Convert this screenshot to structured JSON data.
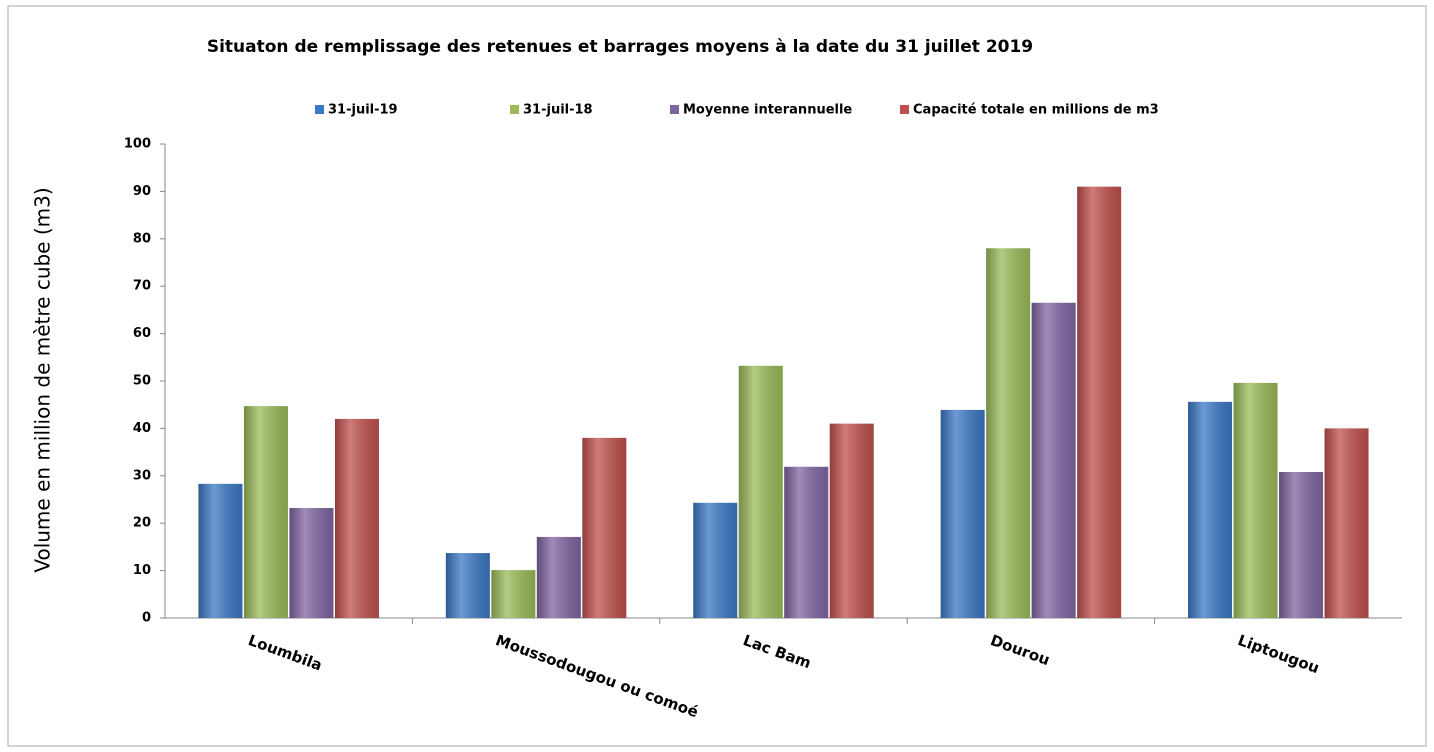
{
  "chart_data": {
    "type": "bar",
    "title": "Situaton de remplissage des retenues et barrages moyens à la date du 31 juillet 2019",
    "y_label": "Volume en million de mètre cube (m3)",
    "categories": [
      "Loumbila",
      "Moussodougou ou comoé",
      "Lac Bam",
      "Dourou",
      "Liptougou"
    ],
    "series": [
      {
        "name": "31-juil-19",
        "color": "#3b78c4",
        "values": [
          28.3,
          13.7,
          24.3,
          43.9,
          45.6
        ]
      },
      {
        "name": "31-juil-18",
        "color": "#9bbb59",
        "values": [
          44.7,
          10.1,
          53.2,
          78,
          49.6
        ]
      },
      {
        "name": "Moyenne interannuelle",
        "color": "#8064a2",
        "values": [
          23.2,
          17.1,
          31.9,
          66.5,
          30.8
        ]
      },
      {
        "name": "Capacité totale en millions de m3",
        "color": "#c0504d",
        "values": [
          42,
          38,
          41,
          91,
          40
        ]
      }
    ],
    "ylim": [
      0,
      100
    ],
    "yticks": [
      0,
      10,
      20,
      30,
      40,
      50,
      60,
      70,
      80,
      90,
      100
    ],
    "grid": false,
    "legend": "top"
  }
}
